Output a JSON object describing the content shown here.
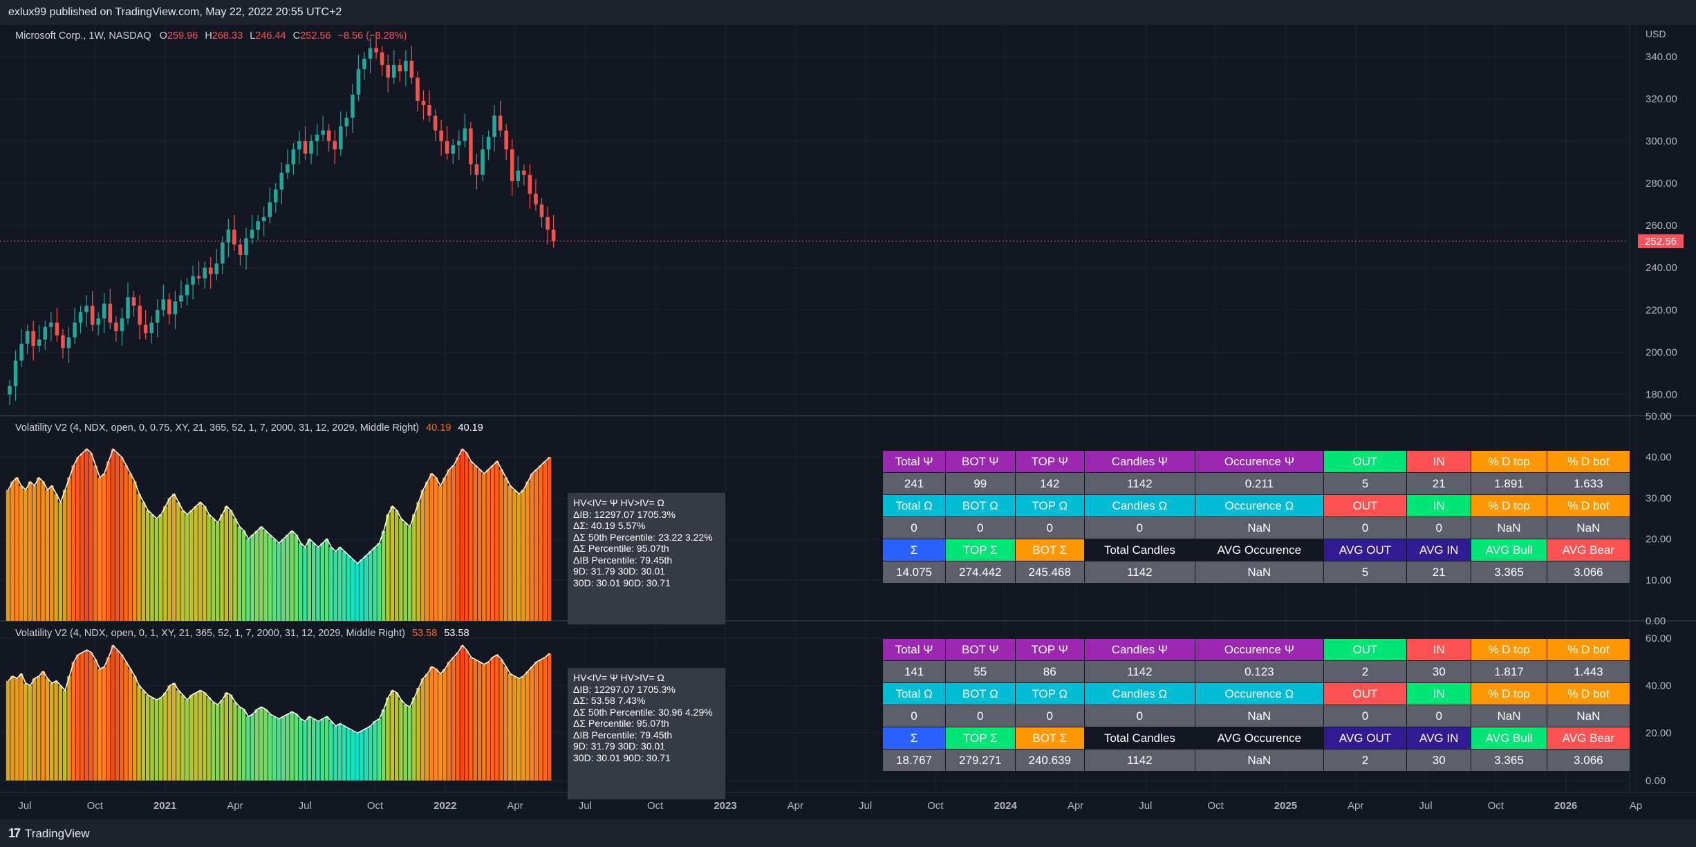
{
  "header": {
    "published": "exlux99 published on TradingView.com, May 22, 2022 20:55 UTC+2"
  },
  "footer": {
    "brand": "TradingView"
  },
  "colors": {
    "bg": "#131722",
    "bull": "#26a69a",
    "bear": "#ef5350",
    "grid": "#1f2330",
    "axis_text": "#b2b5be"
  },
  "main_legend": {
    "symbol": "Microsoft Corp., 1W, NASDAQ",
    "o_label": "O",
    "o": "259.96",
    "h_label": "H",
    "h": "268.33",
    "l_label": "L",
    "l": "246.44",
    "c_label": "C",
    "c": "252.56",
    "chg": "−8.56 (−3.28%)"
  },
  "vol1_legend": {
    "title": "Volatility V2 (4, NDX, open, 0, 0.75, XY, 21, 365, 52, 1, 7, 2000, 31, 12, 2029, Middle Right)",
    "v1": "40.19",
    "v2": "40.19"
  },
  "vol2_legend": {
    "title": "Volatility V2 (4, NDX, open, 0, 1, XY, 21, 365, 52, 1, 7, 2000, 31, 12, 2029, Middle Right)",
    "v1": "53.58",
    "v2": "53.58"
  },
  "tip1": {
    "lines": [
      "HV<IV= Ψ  HV>IV= Ω",
      "ΔIB: 12297.07  1705.3%",
      "ΔΣ: 40.19  5.57%",
      "ΔΣ 50th Percentile: 23.22  3.22%",
      "ΔΣ Percentile: 95.07th",
      "ΔIB Percentile: 79.45th",
      "9D: 31.79  30D: 30.01",
      "30D: 30.01  90D: 30.71"
    ]
  },
  "tip2": {
    "lines": [
      "HV<IV= Ψ  HV>IV= Ω",
      "ΔIB: 12297.07  1705.3%",
      "ΔΣ: 53.58  7.43%",
      "ΔΣ 50th Percentile: 30.96  4.29%",
      "ΔΣ Percentile: 95.07th",
      "ΔIB Percentile: 79.45th",
      "9D: 31.79  30D: 30.01",
      "30D: 30.01  90D: 30.71"
    ]
  },
  "table1": {
    "h1": [
      "Total Ψ",
      "BOT Ψ",
      "TOP Ψ",
      "Candles Ψ",
      "Occurence Ψ",
      "OUT",
      "IN",
      "% D top",
      "% D bot"
    ],
    "r1": [
      "241",
      "99",
      "142",
      "1142",
      "0.211",
      "5",
      "21",
      "1.891",
      "1.633"
    ],
    "h2": [
      "Total Ω",
      "BOT Ω",
      "TOP Ω",
      "Candles Ω",
      "Occurence Ω",
      "OUT",
      "IN",
      "% D top",
      "% D bot"
    ],
    "r2": [
      "0",
      "0",
      "0",
      "0",
      "NaN",
      "0",
      "0",
      "NaN",
      "NaN"
    ],
    "h3": [
      "Σ",
      "TOP Σ",
      "BOT Σ",
      "Total Candles",
      "AVG Occurence",
      "AVG OUT",
      "AVG IN",
      "AVG Bull",
      "AVG Bear"
    ],
    "r3": [
      "14.075",
      "274.442",
      "245.468",
      "1142",
      "NaN",
      "5",
      "21",
      "3.365",
      "3.066"
    ]
  },
  "table2": {
    "h1": [
      "Total Ψ",
      "BOT Ψ",
      "TOP Ψ",
      "Candles Ψ",
      "Occurence Ψ",
      "OUT",
      "IN",
      "% D top",
      "% D bot"
    ],
    "r1": [
      "141",
      "55",
      "86",
      "1142",
      "0.123",
      "2",
      "30",
      "1.817",
      "1.443"
    ],
    "h2": [
      "Total Ω",
      "BOT Ω",
      "TOP Ω",
      "Candles Ω",
      "Occurence Ω",
      "OUT",
      "IN",
      "% D top",
      "% D bot"
    ],
    "r2": [
      "0",
      "0",
      "0",
      "0",
      "NaN",
      "0",
      "0",
      "NaN",
      "NaN"
    ],
    "h3": [
      "Σ",
      "TOP Σ",
      "BOT Σ",
      "Total Candles",
      "AVG Occurence",
      "AVG OUT",
      "AVG IN",
      "AVG Bull",
      "AVG Bear"
    ],
    "r3": [
      "18.767",
      "279.271",
      "240.639",
      "1142",
      "NaN",
      "2",
      "30",
      "3.365",
      "3.066"
    ]
  },
  "chart_data": [
    {
      "type": "candlestick",
      "currency": "USD",
      "ylim": [
        170,
        355
      ],
      "yticks": [
        "340.00",
        "320.00",
        "300.00",
        "280.00",
        "260.00",
        "240.00",
        "220.00",
        "200.00",
        "180.00"
      ],
      "ytick_values": [
        340,
        320,
        300,
        280,
        260,
        240,
        220,
        200,
        180
      ],
      "last_price": "252.56",
      "last_price_value": 252.56,
      "close": [
        184,
        196,
        204,
        210,
        203,
        206,
        212,
        214,
        208,
        202,
        207,
        214,
        219,
        222,
        213,
        216,
        223,
        214,
        210,
        216,
        226,
        222,
        213,
        209,
        214,
        220,
        225,
        218,
        224,
        227,
        232,
        236,
        235,
        240,
        237,
        242,
        252,
        258,
        251,
        246,
        254,
        258,
        262,
        264,
        271,
        277,
        285,
        289,
        296,
        300,
        294,
        300,
        303,
        305,
        300,
        296,
        307,
        311,
        322,
        334,
        339,
        344,
        342,
        336,
        330,
        336,
        333,
        338,
        330,
        319,
        317,
        312,
        305,
        300,
        294,
        298,
        300,
        306,
        289,
        284,
        296,
        302,
        312,
        305,
        296,
        281,
        286,
        284,
        275,
        270,
        264,
        258,
        252.56
      ]
    },
    {
      "type": "bar",
      "name": "Volatility V2",
      "ylim": [
        0,
        50
      ],
      "yticks": [
        "50.00",
        "40.00",
        "30.00",
        "20.00",
        "10.00",
        "0.00"
      ],
      "ytick_values": [
        50,
        40,
        30,
        20,
        10,
        0
      ],
      "values": [
        32,
        34,
        35,
        33,
        32,
        34,
        33,
        35,
        34,
        32,
        33,
        31,
        29,
        32,
        35,
        38,
        40,
        41,
        42,
        41,
        38,
        35,
        36,
        39,
        42,
        41,
        40,
        38,
        36,
        34,
        31,
        29,
        27,
        26,
        25,
        26,
        28,
        30,
        31,
        29,
        27,
        26,
        27,
        28,
        29,
        28,
        26,
        25,
        24,
        26,
        28,
        27,
        25,
        23,
        22,
        20,
        21,
        22,
        23,
        22,
        21,
        20,
        19,
        20,
        21,
        22,
        21,
        19,
        18,
        20,
        19,
        18,
        19,
        20,
        18,
        17,
        18,
        17,
        16,
        15,
        14,
        15,
        16,
        17,
        18,
        19,
        22,
        26,
        28,
        27,
        25,
        24,
        23,
        26,
        29,
        32,
        34,
        36,
        35,
        33,
        35,
        37,
        38,
        40,
        42,
        41,
        39,
        38,
        37,
        36,
        37,
        38,
        39,
        37,
        35,
        33,
        32,
        31,
        32,
        34,
        36,
        37,
        38,
        39,
        40
      ]
    },
    {
      "type": "bar",
      "name": "Volatility V2",
      "ylim": [
        -5,
        67
      ],
      "yticks": [
        "60.00",
        "40.00",
        "20.00",
        "0.00"
      ],
      "ytick_values": [
        60,
        40,
        20,
        0
      ],
      "values": [
        42,
        44,
        43,
        45,
        41,
        40,
        43,
        44,
        46,
        43,
        41,
        42,
        40,
        38,
        44,
        50,
        53,
        54,
        55,
        54,
        51,
        47,
        48,
        52,
        57,
        55,
        53,
        50,
        47,
        44,
        40,
        38,
        36,
        35,
        34,
        35,
        37,
        40,
        41,
        38,
        36,
        34,
        36,
        37,
        38,
        37,
        35,
        33,
        32,
        34,
        37,
        36,
        33,
        31,
        30,
        27,
        28,
        30,
        31,
        30,
        28,
        27,
        26,
        27,
        28,
        29,
        28,
        26,
        25,
        27,
        26,
        25,
        26,
        27,
        25,
        23,
        24,
        23,
        22,
        21,
        20,
        21,
        22,
        23,
        25,
        26,
        30,
        35,
        38,
        37,
        34,
        32,
        31,
        35,
        39,
        43,
        45,
        48,
        47,
        45,
        47,
        50,
        52,
        54,
        57,
        55,
        52,
        51,
        50,
        49,
        50,
        52,
        53,
        51,
        48,
        45,
        44,
        43,
        44,
        46,
        48,
        50,
        51,
        52,
        53.58
      ]
    },
    {
      "type": "time_axis",
      "labels": [
        "Jul",
        "Oct",
        "2021",
        "Apr",
        "Jul",
        "Oct",
        "2022",
        "Apr",
        "Jul",
        "Oct",
        "2023",
        "Apr",
        "Jul",
        "Oct",
        "2024",
        "Apr",
        "Jul",
        "Oct",
        "2025",
        "Apr",
        "Jul",
        "Oct",
        "2026",
        "Ap"
      ]
    }
  ]
}
